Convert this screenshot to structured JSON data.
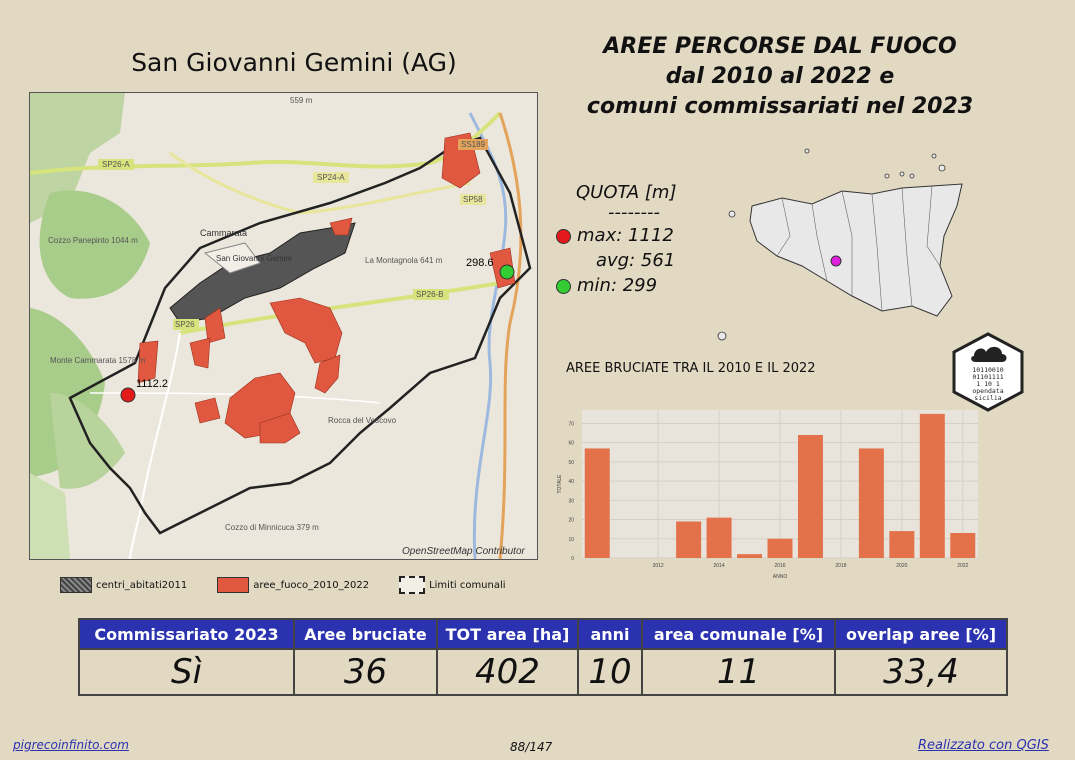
{
  "map": {
    "title": "San Giovanni Gemini (AG)",
    "attribution": "OpenStreetMap Contributor",
    "labels": {
      "max_point": "1112.2",
      "min_point": "298.6",
      "town": "Cammarata",
      "town2": "San Giovanni Gemini",
      "mont1": "Cozzo Panepinto 1044 m",
      "mont2": "Monte Cammarata 1578 m",
      "mont3": "La Montagnola 641 m",
      "mont4": "Rocca del Vescovo",
      "mont5": "Cozzo di Minnicuca 379 m",
      "elev_top": "559 m",
      "road1": "SP26-A",
      "road2": "SP24-A",
      "road3": "SP58",
      "road4": "SP26-B",
      "road5": "SS189",
      "road6": "SP26"
    },
    "colors": {
      "burned": "#e0583f",
      "urban": "#555555",
      "boundary": "#222222",
      "max": "#e31a1c",
      "min": "#33cc33"
    }
  },
  "title": {
    "line1": "AREE PERCORSE DAL FUOCO",
    "line2": "dal 2010 al 2022 e",
    "line3": "comuni commissariati nel 2023"
  },
  "quota": {
    "heading": "QUOTA [m]",
    "divider": "--------",
    "max_label": "max: 1112",
    "avg_label": "avg: 561",
    "min_label": "min: 299"
  },
  "chart_title": "AREE BRUCIATE TRA IL 2010 E IL 2022",
  "chart_data": {
    "type": "bar",
    "title": "AREE BRUCIATE TRA IL 2010 E IL 2022",
    "xlabel": "ANNO",
    "ylabel": "TOTALE",
    "x": [
      2010,
      2011,
      2012,
      2013,
      2014,
      2015,
      2016,
      2017,
      2018,
      2019,
      2020,
      2021,
      2022
    ],
    "values": [
      57,
      0,
      0,
      19,
      21,
      2,
      10,
      64,
      0,
      57,
      14,
      75,
      13
    ],
    "xticks": [
      "2012",
      "2014",
      "2016",
      "2018",
      "2020",
      "2022"
    ],
    "yticks": [
      "0",
      "10",
      "20",
      "30",
      "40",
      "50",
      "60",
      "70"
    ],
    "ylim": [
      0,
      77
    ],
    "color": "#e3714a",
    "grid": true
  },
  "legend": {
    "urban": "centri_abitati2011",
    "fire": "aree_fuoco_2010_2022",
    "limits": "Limiti comunali"
  },
  "stats": {
    "headers": [
      "Commissariato 2023",
      "Aree bruciate",
      "TOT area [ha]",
      "anni",
      "area comunale [%]",
      "overlap aree [%]"
    ],
    "values": [
      "Sì",
      "36",
      "402",
      "10",
      "11",
      "33,4"
    ]
  },
  "footer": {
    "left": "pigrecoinfinito.com",
    "center": "88/147",
    "right": "Realizzato con QGIS"
  },
  "logo": {
    "line1": "10110010",
    "line2": "01101111",
    "line3": "1  10 1",
    "line4": "opendata",
    "line5": "sicilia"
  }
}
